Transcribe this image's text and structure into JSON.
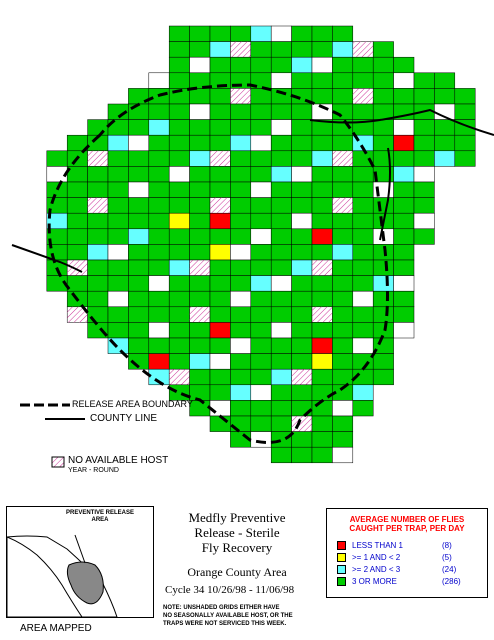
{
  "colors": {
    "less_than_1": "#ff0000",
    "one_to_two": "#ffff00",
    "two_to_three": "#66ffff",
    "three_or_more": "#00cc00",
    "no_host_hatch": "#cc3399",
    "boundary": "#000000"
  },
  "legend_lines": {
    "release_area_boundary": "RELEASE AREA BOUNDARY",
    "county_line": "COUNTY LINE",
    "no_available_host": "NO AVAILABLE HOST",
    "year_round": "YEAR - ROUND"
  },
  "inset": {
    "title_line1": "PREVENTIVE RELEASE",
    "title_line2": "AREA",
    "caption": "AREA MAPPED"
  },
  "title_block": {
    "line1": "Medfly Preventive",
    "line2": "Release - Sterile",
    "line3": "Fly Recovery",
    "line4": "Orange County Area",
    "cycle": "Cycle 34   10/26/98 - 11/06/98",
    "note_line1": "NOTE: UNSHADED GRIDS EITHER HAVE",
    "note_line2": "NO SEASONALLY AVAILABLE HOST, OR THE",
    "note_line3": "TRAPS WERE NOT SERVICED THIS WEEK."
  },
  "fly_legend": {
    "title_line1": "AVERAGE NUMBER OF FLIES",
    "title_line2": "CAUGHT PER TRAP, PER DAY",
    "items": [
      {
        "label": "LESS THAN 1",
        "count": "(8)",
        "color": "#ff0000"
      },
      {
        "label": ">= 1 AND < 2",
        "count": "(5)",
        "color": "#ffff00"
      },
      {
        "label": ">= 2 AND < 3",
        "count": "(24)",
        "color": "#66ffff"
      },
      {
        "label": "3 OR MORE",
        "count": "(286)",
        "color": "#00cc00"
      }
    ]
  }
}
